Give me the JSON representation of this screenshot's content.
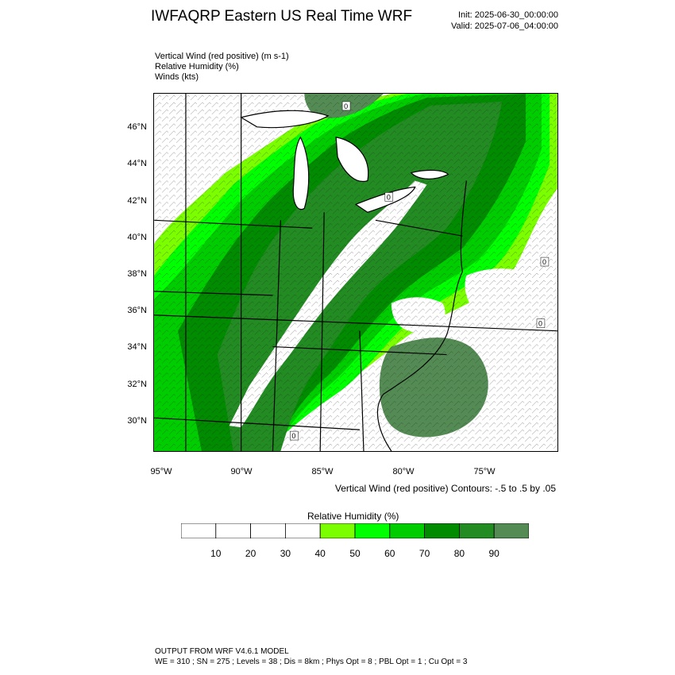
{
  "header": {
    "title": "IWFAQRP Eastern US Real Time WRF",
    "init": "Init: 2025-06-30_00:00:00",
    "valid": "Valid: 2025-07-06_04:00:00"
  },
  "fields": [
    "Vertical Wind (red positive)   (m s-1)",
    "Relative Humidity   (%)",
    "Winds   (kts)"
  ],
  "map": {
    "lat_labels": [
      "46°N",
      "44°N",
      "42°N",
      "40°N",
      "38°N",
      "36°N",
      "34°N",
      "32°N",
      "30°N"
    ],
    "lon_labels": [
      "95°W",
      "90°W",
      "85°W",
      "80°W",
      "75°W"
    ],
    "contour_label": "0",
    "colors": {
      "rh_40": "#7bff00",
      "rh_50": "#00ff00",
      "rh_60": "#00cd00",
      "rh_70": "#008b00",
      "rh_80": "#228b22",
      "rh_90": "#548b54",
      "boundary": "#000000",
      "contour": "#ffffff"
    }
  },
  "contour_info": "Vertical Wind (red positive) Contours: -.5 to .5 by .05",
  "colorbar": {
    "title": "Relative Humidity   (%)",
    "labels": [
      "10",
      "20",
      "30",
      "40",
      "50",
      "60",
      "70",
      "80",
      "90"
    ],
    "colors": [
      "#ffffff",
      "#ffffff",
      "#ffffff",
      "#ffffff",
      "#7bff00",
      "#00ff00",
      "#00cd00",
      "#008b00",
      "#228b22",
      "#548b54"
    ]
  },
  "footer": {
    "line1": "OUTPUT FROM WRF V4.6.1 MODEL",
    "line2": "WE = 310 ; SN = 275 ; Levels = 38 ; Dis = 8km ; Phys Opt = 8 ; PBL Opt = 1 ; Cu Opt = 3"
  }
}
